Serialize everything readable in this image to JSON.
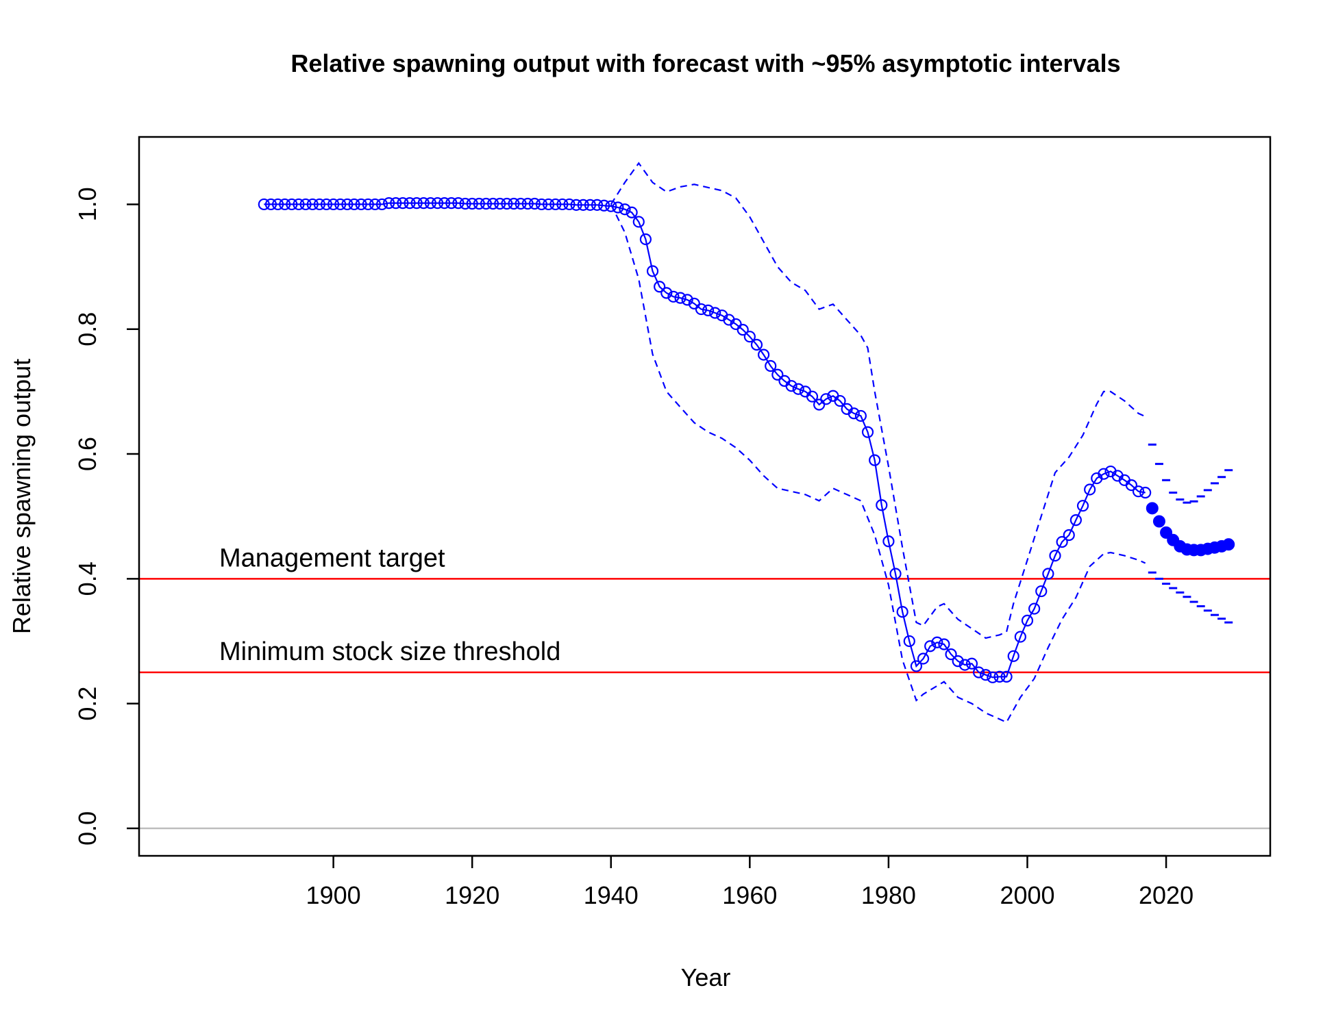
{
  "chart_data": {
    "type": "line",
    "title": "Relative spawning output with forecast with ~95% asymptotic intervals",
    "xlabel": "Year",
    "ylabel": "Relative spawning output",
    "xlim": [
      1872,
      2035
    ],
    "ylim": [
      -0.044,
      1.108
    ],
    "x_ticks": [
      1900,
      1920,
      1940,
      1960,
      1980,
      2000,
      2020
    ],
    "y_ticks": [
      0.0,
      0.2,
      0.4,
      0.6,
      0.8,
      1.0
    ],
    "x_tick_labels": [
      "1900",
      "1920",
      "1940",
      "1960",
      "1980",
      "2000",
      "2020"
    ],
    "y_tick_labels": [
      "0.0",
      "0.2",
      "0.4",
      "0.6",
      "0.8",
      "1.0"
    ],
    "grid": false,
    "reference_lines": [
      {
        "label": "Management target",
        "y": 0.4,
        "color": "#ff0000"
      },
      {
        "label": "Minimum stock size threshold",
        "y": 0.25,
        "color": "#ff0000"
      },
      {
        "label": "",
        "y": 0.0,
        "color": "#bebebe"
      }
    ],
    "series_color": "#0000ff",
    "historical": {
      "start_year": 1890,
      "values": [
        1.0,
        1.0,
        1.0,
        1.0,
        1.0,
        1.0,
        1.0,
        1.0,
        1.0,
        1.0,
        1.0,
        1.0,
        1.0,
        1.0,
        1.0,
        1.0,
        1.0,
        1.0,
        1.002,
        1.002,
        1.002,
        1.002,
        1.002,
        1.002,
        1.002,
        1.002,
        1.002,
        1.002,
        1.002,
        1.001,
        1.001,
        1.001,
        1.001,
        1.001,
        1.001,
        1.001,
        1.001,
        1.001,
        1.001,
        1.001,
        1.0,
        1.0,
        1.0,
        1.0,
        1.0,
        0.999,
        0.999,
        0.999,
        0.999,
        0.998,
        0.997,
        0.995,
        0.992,
        0.987,
        0.972,
        0.944,
        0.893,
        0.868,
        0.858,
        0.852,
        0.85,
        0.847,
        0.841,
        0.832,
        0.83,
        0.826,
        0.822,
        0.815,
        0.808,
        0.799,
        0.788,
        0.775,
        0.759,
        0.741,
        0.727,
        0.717,
        0.709,
        0.704,
        0.7,
        0.692,
        0.679,
        0.688,
        0.693,
        0.685,
        0.672,
        0.665,
        0.661,
        0.635,
        0.59,
        0.518,
        0.46,
        0.408,
        0.347,
        0.3,
        0.26,
        0.272,
        0.292,
        0.298,
        0.295,
        0.279,
        0.268,
        0.262,
        0.264,
        0.25,
        0.246,
        0.242,
        0.243,
        0.243,
        0.276,
        0.307,
        0.333,
        0.352,
        0.38,
        0.408,
        0.437,
        0.459,
        0.47,
        0.494,
        0.517,
        0.543,
        0.561,
        0.568,
        0.572,
        0.565,
        0.558,
        0.55,
        0.54,
        0.538
      ]
    },
    "forecast": {
      "start_year": 2018,
      "values": [
        0.513,
        0.492,
        0.474,
        0.462,
        0.452,
        0.447,
        0.446,
        0.446,
        0.448,
        0.45,
        0.452,
        0.455
      ]
    },
    "upper_interval": {
      "points": [
        [
          1940,
          1.0
        ],
        [
          1942,
          1.035
        ],
        [
          1944,
          1.066
        ],
        [
          1946,
          1.035
        ],
        [
          1948,
          1.02
        ],
        [
          1950,
          1.028
        ],
        [
          1952,
          1.032
        ],
        [
          1956,
          1.022
        ],
        [
          1958,
          1.01
        ],
        [
          1960,
          0.98
        ],
        [
          1962,
          0.94
        ],
        [
          1964,
          0.9
        ],
        [
          1966,
          0.875
        ],
        [
          1968,
          0.862
        ],
        [
          1970,
          0.832
        ],
        [
          1972,
          0.84
        ],
        [
          1974,
          0.815
        ],
        [
          1976,
          0.79
        ],
        [
          1977,
          0.77
        ],
        [
          1978,
          0.7
        ],
        [
          1980,
          0.58
        ],
        [
          1982,
          0.45
        ],
        [
          1983,
          0.39
        ],
        [
          1984,
          0.33
        ],
        [
          1985,
          0.325
        ],
        [
          1987,
          0.355
        ],
        [
          1988,
          0.36
        ],
        [
          1990,
          0.335
        ],
        [
          1992,
          0.32
        ],
        [
          1994,
          0.305
        ],
        [
          1996,
          0.31
        ],
        [
          1997,
          0.315
        ],
        [
          1998,
          0.36
        ],
        [
          2000,
          0.43
        ],
        [
          2002,
          0.5
        ],
        [
          2004,
          0.57
        ],
        [
          2006,
          0.595
        ],
        [
          2008,
          0.63
        ],
        [
          2010,
          0.68
        ],
        [
          2011,
          0.7
        ],
        [
          2012,
          0.7
        ],
        [
          2014,
          0.685
        ],
        [
          2016,
          0.665
        ],
        [
          2017,
          0.66
        ]
      ]
    },
    "lower_interval": {
      "points": [
        [
          1940,
          1.0
        ],
        [
          1942,
          0.955
        ],
        [
          1944,
          0.88
        ],
        [
          1946,
          0.76
        ],
        [
          1948,
          0.7
        ],
        [
          1950,
          0.675
        ],
        [
          1952,
          0.65
        ],
        [
          1954,
          0.635
        ],
        [
          1956,
          0.625
        ],
        [
          1958,
          0.61
        ],
        [
          1960,
          0.59
        ],
        [
          1962,
          0.565
        ],
        [
          1964,
          0.545
        ],
        [
          1966,
          0.54
        ],
        [
          1968,
          0.535
        ],
        [
          1970,
          0.525
        ],
        [
          1972,
          0.545
        ],
        [
          1974,
          0.535
        ],
        [
          1976,
          0.525
        ],
        [
          1978,
          0.47
        ],
        [
          1980,
          0.39
        ],
        [
          1982,
          0.27
        ],
        [
          1984,
          0.205
        ],
        [
          1985,
          0.215
        ],
        [
          1988,
          0.235
        ],
        [
          1990,
          0.21
        ],
        [
          1992,
          0.2
        ],
        [
          1994,
          0.185
        ],
        [
          1996,
          0.175
        ],
        [
          1997,
          0.17
        ],
        [
          1999,
          0.21
        ],
        [
          2001,
          0.24
        ],
        [
          2003,
          0.29
        ],
        [
          2005,
          0.335
        ],
        [
          2007,
          0.37
        ],
        [
          2009,
          0.42
        ],
        [
          2011,
          0.44
        ],
        [
          2012,
          0.442
        ],
        [
          2014,
          0.437
        ],
        [
          2016,
          0.43
        ],
        [
          2017,
          0.425
        ]
      ]
    },
    "forecast_upper": {
      "start_year": 2018,
      "values": [
        0.615,
        0.584,
        0.558,
        0.538,
        0.527,
        0.522,
        0.524,
        0.532,
        0.542,
        0.553,
        0.563,
        0.574
      ]
    },
    "forecast_lower": {
      "start_year": 2018,
      "values": [
        0.41,
        0.4,
        0.392,
        0.385,
        0.378,
        0.371,
        0.363,
        0.356,
        0.349,
        0.342,
        0.336,
        0.33
      ]
    }
  }
}
